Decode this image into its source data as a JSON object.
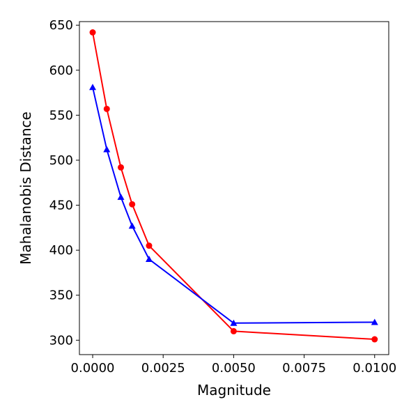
{
  "chart_data": {
    "type": "line",
    "title": "",
    "xlabel": "Magnitude",
    "ylabel": "Mahalanobis Distance",
    "xlim": [
      -0.00047,
      0.0105
    ],
    "ylim": [
      284,
      654
    ],
    "xticks": [
      0.0,
      0.0025,
      0.005,
      0.0075,
      0.01
    ],
    "xtick_labels": [
      "0.0000",
      "0.0025",
      "0.0050",
      "0.0075",
      "0.0100"
    ],
    "yticks": [
      300,
      350,
      400,
      450,
      500,
      550,
      600,
      650
    ],
    "ytick_labels": [
      "300",
      "350",
      "400",
      "450",
      "500",
      "550",
      "600",
      "650"
    ],
    "grid": false,
    "legend": "none",
    "series": [
      {
        "color": "#ff0000",
        "marker": "circle",
        "x": [
          0.0,
          0.0005,
          0.001,
          0.0014,
          0.002,
          0.005,
          0.01
        ],
        "y": [
          642,
          557,
          492,
          451,
          405,
          310,
          301
        ]
      },
      {
        "color": "#0000ff",
        "marker": "triangle",
        "x": [
          0.0,
          0.0005,
          0.001,
          0.0014,
          0.002,
          0.005,
          0.01
        ],
        "y": [
          581,
          512,
          459,
          427,
          390,
          319,
          320
        ]
      }
    ]
  }
}
